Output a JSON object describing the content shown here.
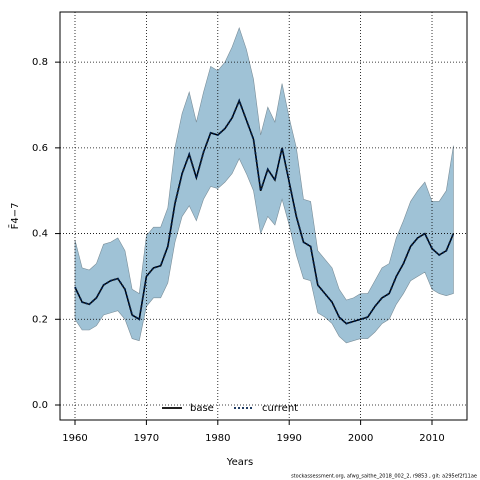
{
  "chart_data": {
    "type": "line",
    "xlabel": "Years",
    "ylabel": "F̄4−7",
    "footnote": "stockassessment.org, afwg_saithe_2018_002_2, r9853 , git: a295ef2f11ae",
    "x": [
      1960,
      1961,
      1962,
      1963,
      1964,
      1965,
      1966,
      1967,
      1968,
      1969,
      1970,
      1971,
      1972,
      1973,
      1974,
      1975,
      1976,
      1977,
      1978,
      1979,
      1980,
      1981,
      1982,
      1983,
      1984,
      1985,
      1986,
      1987,
      1988,
      1989,
      1990,
      1991,
      1992,
      1993,
      1994,
      1995,
      1996,
      1997,
      1998,
      1999,
      2000,
      2001,
      2002,
      2003,
      2004,
      2005,
      2006,
      2007,
      2008,
      2009,
      2010,
      2011,
      2012,
      2013
    ],
    "series": [
      {
        "name": "base",
        "color": "#000000",
        "dash": "solid",
        "values": [
          0.275,
          0.24,
          0.235,
          0.25,
          0.28,
          0.29,
          0.295,
          0.27,
          0.21,
          0.2,
          0.3,
          0.32,
          0.325,
          0.37,
          0.47,
          0.54,
          0.585,
          0.53,
          0.59,
          0.635,
          0.63,
          0.645,
          0.67,
          0.71,
          0.665,
          0.62,
          0.5,
          0.55,
          0.525,
          0.6,
          0.52,
          0.44,
          0.38,
          0.37,
          0.28,
          0.26,
          0.24,
          0.205,
          0.19,
          0.195,
          0.2,
          0.205,
          0.23,
          0.25,
          0.26,
          0.3,
          0.33,
          0.37,
          0.39,
          0.4,
          0.365,
          0.35,
          0.36,
          0.4
        ]
      },
      {
        "name": "current",
        "color": "#00204d",
        "dash": "dotted",
        "values": [
          0.275,
          0.24,
          0.235,
          0.25,
          0.28,
          0.29,
          0.295,
          0.27,
          0.21,
          0.2,
          0.3,
          0.32,
          0.325,
          0.37,
          0.47,
          0.54,
          0.585,
          0.53,
          0.59,
          0.635,
          0.63,
          0.645,
          0.67,
          0.71,
          0.665,
          0.62,
          0.5,
          0.55,
          0.525,
          0.6,
          0.52,
          0.44,
          0.38,
          0.37,
          0.28,
          0.26,
          0.24,
          0.205,
          0.19,
          0.195,
          0.2,
          0.205,
          0.23,
          0.25,
          0.26,
          0.3,
          0.33,
          0.37,
          0.39,
          0.4,
          0.365,
          0.35,
          0.36,
          0.4
        ]
      }
    ],
    "band": {
      "color": "#9fc2d6",
      "upper": [
        0.385,
        0.32,
        0.315,
        0.33,
        0.375,
        0.38,
        0.39,
        0.36,
        0.27,
        0.26,
        0.395,
        0.415,
        0.415,
        0.46,
        0.6,
        0.68,
        0.73,
        0.66,
        0.73,
        0.79,
        0.78,
        0.8,
        0.835,
        0.88,
        0.83,
        0.76,
        0.63,
        0.695,
        0.66,
        0.75,
        0.67,
        0.6,
        0.48,
        0.475,
        0.36,
        0.34,
        0.32,
        0.27,
        0.245,
        0.25,
        0.26,
        0.26,
        0.29,
        0.32,
        0.33,
        0.39,
        0.43,
        0.475,
        0.5,
        0.52,
        0.475,
        0.475,
        0.5,
        0.605
      ],
      "lower": [
        0.2,
        0.175,
        0.175,
        0.185,
        0.21,
        0.215,
        0.22,
        0.2,
        0.155,
        0.15,
        0.23,
        0.25,
        0.25,
        0.285,
        0.38,
        0.44,
        0.465,
        0.43,
        0.48,
        0.51,
        0.505,
        0.52,
        0.54,
        0.575,
        0.54,
        0.5,
        0.4,
        0.44,
        0.42,
        0.48,
        0.42,
        0.35,
        0.295,
        0.29,
        0.215,
        0.205,
        0.19,
        0.16,
        0.145,
        0.15,
        0.155,
        0.155,
        0.17,
        0.19,
        0.2,
        0.235,
        0.26,
        0.29,
        0.3,
        0.31,
        0.27,
        0.26,
        0.255,
        0.26
      ]
    },
    "xlim": [
      1957.9,
      2014.9
    ],
    "ylim": [
      -0.035,
      0.917
    ],
    "xticks": [
      1960,
      1970,
      1980,
      1990,
      2000,
      2010
    ],
    "yticks": [
      {
        "value": 0,
        "label": "0.0"
      },
      {
        "value": 0.2,
        "label": "0.2"
      },
      0.4,
      0.6,
      0.8
    ],
    "grid": true,
    "legend": "bottom"
  }
}
